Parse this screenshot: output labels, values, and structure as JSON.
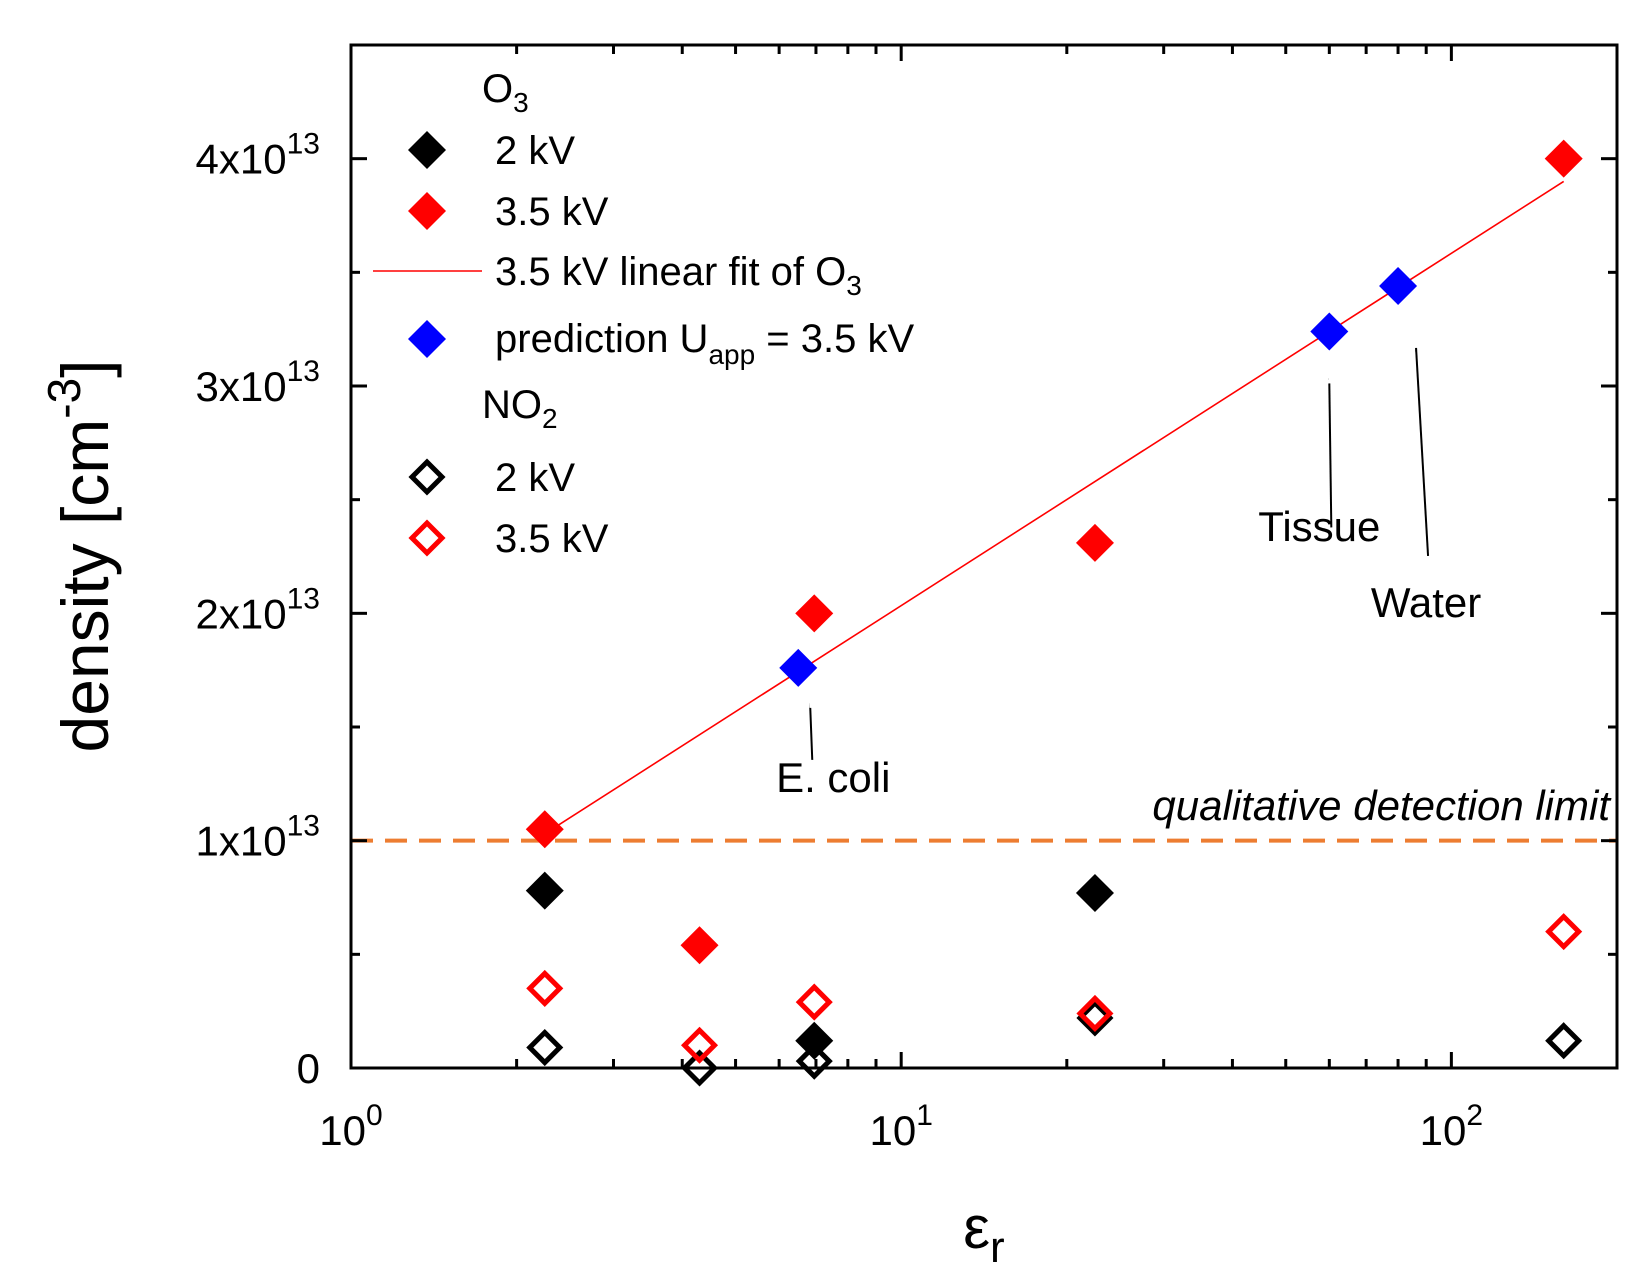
{
  "colors": {
    "o3_2kv": "#000000",
    "o3_35kv": "#ff0000",
    "fit": "#ff0000",
    "prediction": "#0000ff",
    "detection_limit": "#ed7d31"
  },
  "chart_data": {
    "type": "scatter",
    "xscale": "log",
    "xlim": [
      1,
      200
    ],
    "ylim": [
      0,
      45000000000000.0
    ],
    "xlabel": "ε",
    "xlabel_sub": "r",
    "ylabel": "density [cm",
    "ylabel_sup": "-3",
    "ylabel_end": "]",
    "x_ticks": [
      {
        "value": 1,
        "base": "10",
        "exp": "0"
      },
      {
        "value": 10,
        "base": "10",
        "exp": "1"
      },
      {
        "value": 100,
        "base": "10",
        "exp": "2"
      }
    ],
    "y_ticks": [
      {
        "value": 0,
        "label": "0",
        "exp": ""
      },
      {
        "value": 10000000000000.0,
        "label": "1x10",
        "exp": "13"
      },
      {
        "value": 20000000000000.0,
        "label": "2x10",
        "exp": "13"
      },
      {
        "value": 30000000000000.0,
        "label": "3x10",
        "exp": "13"
      },
      {
        "value": 40000000000000.0,
        "label": "4x10",
        "exp": "13"
      }
    ],
    "legend": {
      "placement": "top-left",
      "group1_title": "O",
      "group1_sub": "3",
      "o3_2kv": "2 kV",
      "o3_35kv": "3.5 kV",
      "fit": "3.5 kV linear fit of O",
      "fit_sub": "3",
      "prediction": "prediction U",
      "prediction_sub": "app",
      "prediction_end": " = 3.5 kV",
      "group2_title": "NO",
      "group2_sub": "2",
      "no2_2kv": "2 kV",
      "no2_35kv": "3.5 kV"
    },
    "series": [
      {
        "name": "O3 2 kV",
        "marker": "diamond",
        "filled": true,
        "color": "#000000",
        "points": [
          [
            2.25,
            7800000000000.0
          ],
          [
            6.95,
            1200000000000.0
          ],
          [
            22.5,
            7700000000000.0
          ]
        ]
      },
      {
        "name": "O3 3.5 kV",
        "marker": "diamond",
        "filled": true,
        "color": "#ff0000",
        "points": [
          [
            2.25,
            10500000000000.0
          ],
          [
            4.3,
            5400000000000.0
          ],
          [
            6.95,
            20000000000000.0
          ],
          [
            22.5,
            23100000000000.0
          ],
          [
            160,
            40000000000000.0
          ]
        ]
      },
      {
        "name": "prediction U_app = 3.5 kV",
        "marker": "diamond",
        "filled": true,
        "color": "#0000ff",
        "points": [
          [
            6.5,
            17600000000000.0
          ],
          [
            60,
            32400000000000.0
          ],
          [
            80,
            34400000000000.0
          ]
        ]
      },
      {
        "name": "NO2 2 kV",
        "marker": "diamond",
        "filled": false,
        "color": "#000000",
        "points": [
          [
            2.25,
            900000000000.0
          ],
          [
            4.3,
            0
          ],
          [
            6.95,
            300000000000.0
          ],
          [
            22.5,
            2200000000000.0
          ],
          [
            160,
            1200000000000.0
          ]
        ]
      },
      {
        "name": "NO2 3.5 kV",
        "marker": "diamond",
        "filled": false,
        "color": "#ff0000",
        "points": [
          [
            2.25,
            3500000000000.0
          ],
          [
            4.3,
            1000000000000.0
          ],
          [
            6.95,
            2900000000000.0
          ],
          [
            22.5,
            2400000000000.0
          ],
          [
            160,
            6000000000000.0
          ]
        ]
      }
    ],
    "fit_line": {
      "name": "3.5 kV linear fit of O3",
      "from": [
        2.25,
        10300000000000.0
      ],
      "to": [
        160,
        39000000000000.0
      ]
    },
    "detection_limit": {
      "value": 10000000000000.0,
      "label": "qualitative detection limit"
    },
    "annotations": [
      {
        "name": "ecoli",
        "text": "E. coli",
        "x": 6.5,
        "y": 17600000000000.0
      },
      {
        "name": "tissue",
        "text": "Tissue",
        "x": 60,
        "y": 32400000000000.0
      },
      {
        "name": "water",
        "text": "Water",
        "x": 80,
        "y": 34400000000000.0
      }
    ]
  }
}
